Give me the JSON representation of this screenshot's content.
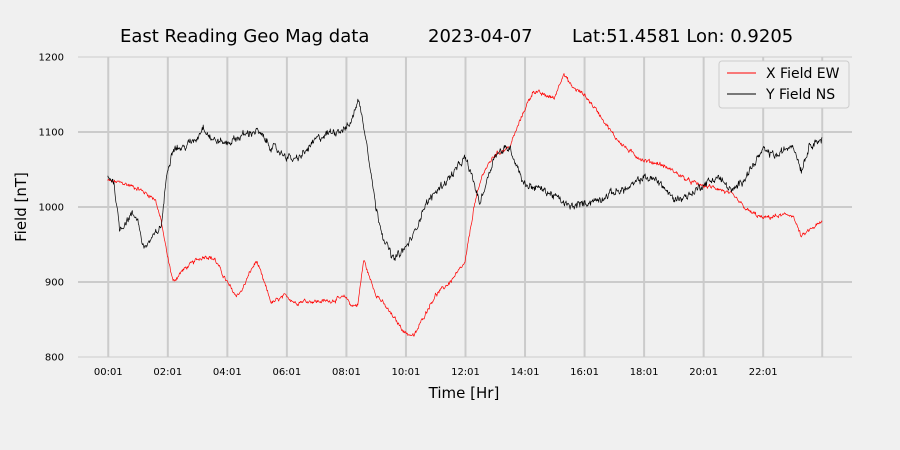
{
  "chart_data": {
    "type": "line",
    "title": {
      "station": "East Reading Geo Mag data",
      "date": "2023-04-07",
      "location": "Lat:51.4581  Lon: 0.9205"
    },
    "xlabel": "Time  [Hr]",
    "ylabel": "Field  [nT]",
    "ylim": [
      800,
      1200
    ],
    "xlim": [
      -1,
      25
    ],
    "y_ticks": [
      800,
      900,
      1000,
      1100,
      1200
    ],
    "x_ticks": [
      {
        "label": "00:01",
        "hour": 0.0167
      },
      {
        "label": "02:01",
        "hour": 2.0167
      },
      {
        "label": "04:01",
        "hour": 4.0167
      },
      {
        "label": "06:01",
        "hour": 6.0167
      },
      {
        "label": "08:01",
        "hour": 8.0167
      },
      {
        "label": "10:01",
        "hour": 10.0167
      },
      {
        "label": "12:01",
        "hour": 12.0167
      },
      {
        "label": "14:01",
        "hour": 14.0167
      },
      {
        "label": "16:01",
        "hour": 16.0167
      },
      {
        "label": "18:01",
        "hour": 18.0167
      },
      {
        "label": "20:01",
        "hour": 20.0167
      },
      {
        "label": "22:01",
        "hour": 22.0167
      }
    ],
    "extra_gridlines_hours": [
      24
    ],
    "grid": true,
    "legend_position": "top-right",
    "series": [
      {
        "name": "X Field EW",
        "color": "#ff0000",
        "noise": 4,
        "x": [
          0,
          0.5,
          1.0,
          1.3,
          1.6,
          1.8,
          2.0,
          2.2,
          2.5,
          3.0,
          3.3,
          3.6,
          4.0,
          4.3,
          4.5,
          4.8,
          5.0,
          5.2,
          5.5,
          5.8,
          6.0,
          6.3,
          6.6,
          7.0,
          7.5,
          8.0,
          8.2,
          8.4,
          8.6,
          8.8,
          9.0,
          9.5,
          10.0,
          10.3,
          10.5,
          10.8,
          11.0,
          11.5,
          11.8,
          12.0,
          12.3,
          12.6,
          13.0,
          13.5,
          14.0,
          14.3,
          14.6,
          15.0,
          15.3,
          15.6,
          16.0,
          16.5,
          17.0,
          17.5,
          18.0,
          18.5,
          19.0,
          19.5,
          20.0,
          20.5,
          21.0,
          21.5,
          22.0,
          22.5,
          23.0,
          23.3,
          23.6,
          24.0
        ],
        "values": [
          1035,
          1032,
          1025,
          1018,
          1010,
          980,
          935,
          900,
          915,
          930,
          935,
          930,
          900,
          882,
          888,
          915,
          928,
          905,
          872,
          878,
          882,
          872,
          875,
          874,
          875,
          880,
          868,
          870,
          930,
          905,
          885,
          858,
          832,
          828,
          845,
          868,
          882,
          900,
          915,
          925,
          1000,
          1045,
          1070,
          1080,
          1130,
          1155,
          1150,
          1145,
          1178,
          1160,
          1150,
          1125,
          1095,
          1075,
          1062,
          1058,
          1048,
          1035,
          1028,
          1025,
          1015,
          995,
          985,
          988,
          990,
          960,
          970,
          980
        ]
      },
      {
        "name": "Y Field NS",
        "color": "#000000",
        "noise": 7,
        "x": [
          0,
          0.2,
          0.4,
          0.6,
          0.8,
          1.0,
          1.2,
          1.5,
          1.8,
          2.0,
          2.2,
          2.5,
          3.0,
          3.2,
          3.5,
          4.0,
          4.5,
          5.0,
          5.5,
          6.0,
          6.3,
          6.6,
          7.0,
          7.5,
          8.0,
          8.2,
          8.4,
          8.6,
          8.8,
          9.0,
          9.3,
          9.6,
          10.0,
          10.3,
          10.6,
          11.0,
          11.5,
          12.0,
          12.2,
          12.5,
          13.0,
          13.5,
          14.0,
          14.5,
          15.0,
          15.5,
          16.0,
          16.5,
          17.0,
          17.5,
          18.0,
          18.5,
          19.0,
          19.5,
          20.0,
          20.5,
          21.0,
          21.5,
          22.0,
          22.5,
          23.0,
          23.3,
          23.6,
          24.0
        ],
        "values": [
          1040,
          1035,
          970,
          980,
          990,
          985,
          945,
          958,
          975,
          1050,
          1080,
          1078,
          1092,
          1108,
          1090,
          1085,
          1095,
          1102,
          1080,
          1068,
          1062,
          1072,
          1090,
          1100,
          1105,
          1115,
          1145,
          1110,
          1060,
          1000,
          955,
          930,
          945,
          965,
          998,
          1020,
          1040,
          1065,
          1045,
          1005,
          1070,
          1080,
          1030,
          1025,
          1015,
          1000,
          1005,
          1010,
          1020,
          1025,
          1040,
          1035,
          1010,
          1015,
          1030,
          1040,
          1020,
          1045,
          1075,
          1068,
          1085,
          1050,
          1085,
          1090
        ]
      }
    ]
  }
}
